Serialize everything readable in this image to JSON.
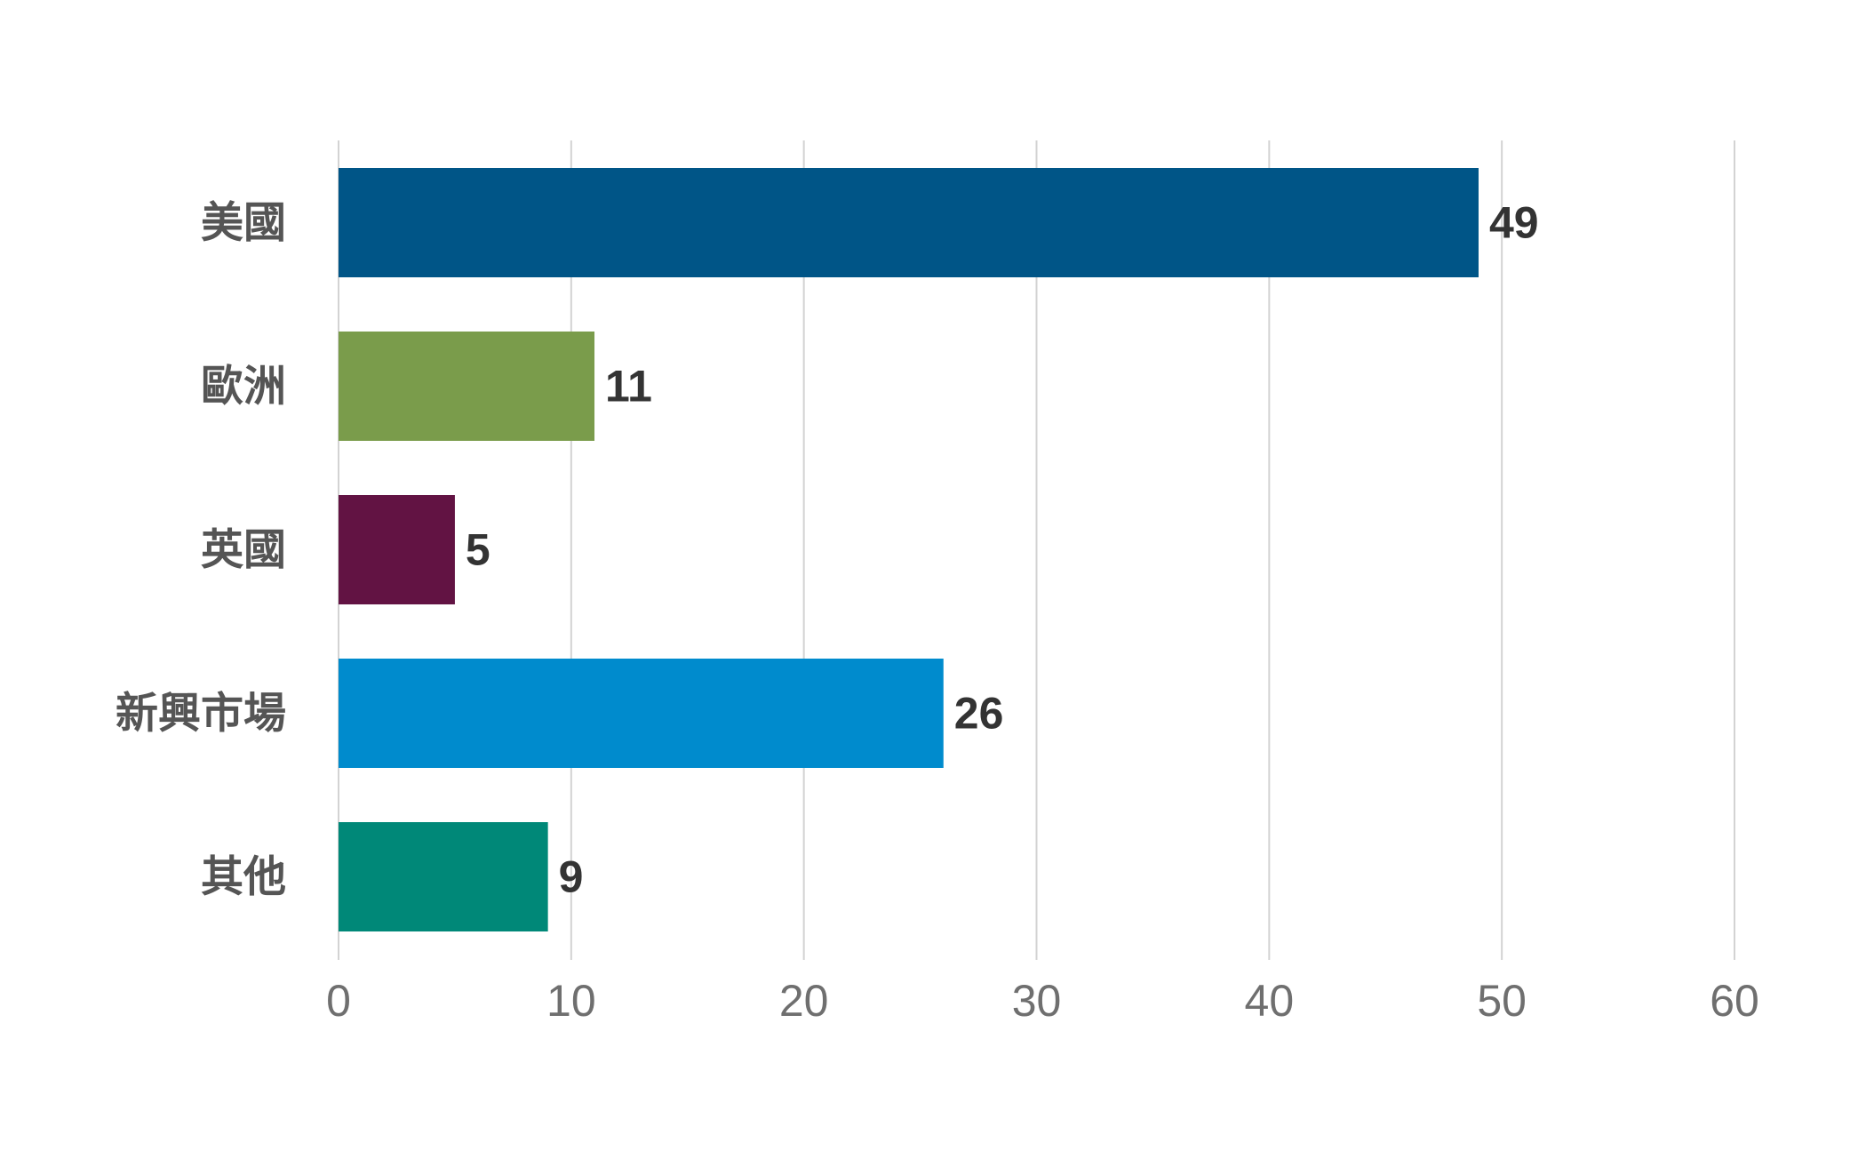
{
  "chart_data": {
    "type": "bar",
    "orientation": "horizontal",
    "categories": [
      "美國",
      "歐洲",
      "英國",
      "新興市場",
      "其他"
    ],
    "values": [
      49,
      11,
      5,
      26,
      9
    ],
    "colors": [
      "#005587",
      "#7a9c4b",
      "#621343",
      "#008bcd",
      "#008878"
    ],
    "xlim": [
      0,
      60
    ],
    "xticks": [
      0,
      10,
      20,
      30,
      40,
      50,
      60
    ],
    "grid": true,
    "data_labels": true
  }
}
